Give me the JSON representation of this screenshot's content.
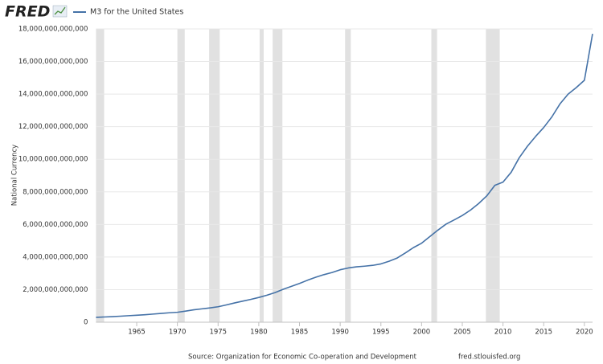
{
  "chart_data": {
    "type": "line",
    "brand": "FRED",
    "y_label": "National Currency",
    "source": "Source: Organization for Economic Co-operation and Development",
    "site": "fred.stlouisfed.org",
    "x": [
      1960,
      1961,
      1962,
      1963,
      1964,
      1965,
      1966,
      1967,
      1968,
      1969,
      1970,
      1971,
      1972,
      1973,
      1974,
      1975,
      1976,
      1977,
      1978,
      1979,
      1980,
      1981,
      1982,
      1983,
      1984,
      1985,
      1986,
      1987,
      1988,
      1989,
      1990,
      1991,
      1992,
      1993,
      1994,
      1995,
      1996,
      1997,
      1998,
      1999,
      2000,
      2001,
      2002,
      2003,
      2004,
      2005,
      2006,
      2007,
      2008,
      2009,
      2010,
      2011,
      2012,
      2013,
      2014,
      2015,
      2016,
      2017,
      2018,
      2019,
      2020,
      2021
    ],
    "series": [
      {
        "name": "M3 for the United States",
        "color": "#4572a7",
        "values": [
          300000000000,
          320000000000,
          340000000000,
          370000000000,
          400000000000,
          430000000000,
          460000000000,
          500000000000,
          540000000000,
          580000000000,
          610000000000,
          680000000000,
          760000000000,
          820000000000,
          880000000000,
          950000000000,
          1060000000000,
          1180000000000,
          1290000000000,
          1400000000000,
          1520000000000,
          1660000000000,
          1820000000000,
          2020000000000,
          2200000000000,
          2380000000000,
          2580000000000,
          2760000000000,
          2920000000000,
          3050000000000,
          3220000000000,
          3330000000000,
          3400000000000,
          3440000000000,
          3490000000000,
          3580000000000,
          3740000000000,
          3940000000000,
          4250000000000,
          4580000000000,
          4850000000000,
          5250000000000,
          5650000000000,
          6020000000000,
          6280000000000,
          6550000000000,
          6880000000000,
          7280000000000,
          7750000000000,
          8400000000000,
          8600000000000,
          9200000000000,
          10100000000000,
          10800000000000,
          11400000000000,
          11950000000000,
          12600000000000,
          13400000000000,
          14000000000000,
          14400000000000,
          14850000000000,
          17700000000000
        ]
      }
    ],
    "recessions": [
      [
        1960.0,
        1961.0
      ],
      [
        1970.0,
        1970.9
      ],
      [
        1973.9,
        1975.2
      ],
      [
        1980.1,
        1980.6
      ],
      [
        1981.7,
        1982.9
      ],
      [
        1990.6,
        1991.3
      ],
      [
        2001.2,
        2001.9
      ],
      [
        2007.9,
        2009.6
      ]
    ],
    "recession_color": "#e1e1e1",
    "xlim": [
      1960,
      2021
    ],
    "xticks": [
      1965,
      1970,
      1975,
      1980,
      1985,
      1990,
      1995,
      2000,
      2005,
      2010,
      2015,
      2020
    ],
    "ylim": [
      0,
      18000000000000
    ],
    "yticks": [
      0,
      {
        "value": 2000000000000,
        "label": "2,000,000,000,000"
      },
      {
        "value": 4000000000000,
        "label": "4,000,000,000,000"
      },
      {
        "value": 6000000000000,
        "label": "6,000,000,000,000"
      },
      {
        "value": 8000000000000,
        "label": "8,000,000,000,000"
      },
      {
        "value": 10000000000000,
        "label": "10,000,000,000,000"
      },
      {
        "value": 12000000000000,
        "label": "12,000,000,000,000"
      },
      {
        "value": 14000000000000,
        "label": "14,000,000,000,000"
      },
      {
        "value": 16000000000000,
        "label": "16,000,000,000,000"
      },
      {
        "value": 18000000000000,
        "label": "18,000,000,000,000"
      }
    ],
    "grid": true
  }
}
